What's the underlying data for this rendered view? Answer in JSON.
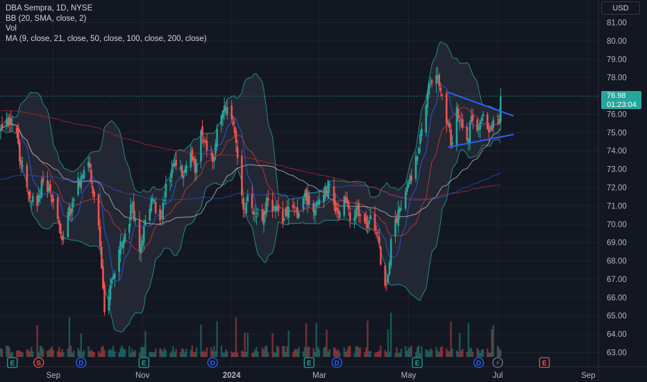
{
  "legend": {
    "line1": "DBA Sempra, 1D, NYSE",
    "line2": "BB (20, SMA, close, 2)",
    "line3": "Vol",
    "line4": "MA (9, close, 21, close, 50, close, 100, close, 200, close)"
  },
  "currency": "USD",
  "last_price": {
    "value": "76.98",
    "countdown": "01:23:04"
  },
  "colors": {
    "background": "#131722",
    "up": "#26a69a",
    "down": "#ef5350",
    "bb_fill": "#2a2e39",
    "ma9": "#2962ff",
    "ma21": "#c33a3a",
    "ma50": "#d1d4dc",
    "ma100": "#2962ff",
    "ma200": "#b22833",
    "trendline": "#2962ff"
  },
  "chart_data": {
    "type": "candlestick",
    "symbol": "DBA Sempra",
    "interval": "1D",
    "exchange": "NYSE",
    "y_ticks": [
      "81.00",
      "80.00",
      "79.00",
      "78.00",
      "77.00",
      "76.00",
      "75.00",
      "74.00",
      "73.00",
      "72.00",
      "71.00",
      "70.00",
      "69.00",
      "68.00",
      "67.00",
      "66.00",
      "65.00",
      "64.00",
      "63.00"
    ],
    "ylim": [
      62.5,
      81.9
    ],
    "x_ticks": [
      {
        "label": "Sep",
        "date": "2023-09-01"
      },
      {
        "label": "Nov",
        "date": "2023-11-01"
      },
      {
        "label": "2024",
        "date": "2024-01-01",
        "bold": true
      },
      {
        "label": "Mar",
        "date": "2024-03-01"
      },
      {
        "label": "May",
        "date": "2024-05-01"
      },
      {
        "label": "Jul",
        "date": "2024-07-01"
      },
      {
        "label": "Sep",
        "date": "2024-09-01"
      }
    ],
    "x_range": [
      "2023-07-27",
      "2024-09-06"
    ],
    "last_close": 76.98,
    "close_anchors": [
      [
        "2023-07-27",
        75.2
      ],
      [
        "2023-08-02",
        75.8
      ],
      [
        "2023-08-07",
        75.0
      ],
      [
        "2023-08-10",
        73.2
      ],
      [
        "2023-08-15",
        71.6
      ],
      [
        "2023-08-21",
        71.0
      ],
      [
        "2023-08-24",
        72.4
      ],
      [
        "2023-08-30",
        71.8
      ],
      [
        "2023-09-05",
        70.0
      ],
      [
        "2023-09-08",
        69.3
      ],
      [
        "2023-09-14",
        71.2
      ],
      [
        "2023-09-20",
        72.6
      ],
      [
        "2023-09-25",
        73.4
      ],
      [
        "2023-09-29",
        71.5
      ],
      [
        "2023-10-03",
        68.8
      ],
      [
        "2023-10-05",
        66.5
      ],
      [
        "2023-10-06",
        65.2
      ],
      [
        "2023-10-11",
        67.0
      ],
      [
        "2023-10-16",
        68.6
      ],
      [
        "2023-10-20",
        69.5
      ],
      [
        "2023-10-25",
        71.0
      ],
      [
        "2023-10-30",
        68.5
      ],
      [
        "2023-11-03",
        70.2
      ],
      [
        "2023-11-08",
        71.4
      ],
      [
        "2023-11-13",
        70.2
      ],
      [
        "2023-11-17",
        72.2
      ],
      [
        "2023-11-22",
        73.3
      ],
      [
        "2023-11-28",
        72.6
      ],
      [
        "2023-12-04",
        73.9
      ],
      [
        "2023-12-07",
        72.8
      ],
      [
        "2023-12-11",
        75.1
      ],
      [
        "2023-12-14",
        74.5
      ],
      [
        "2023-12-19",
        73.4
      ],
      [
        "2023-12-22",
        75.2
      ],
      [
        "2023-12-28",
        76.2
      ],
      [
        "2024-01-03",
        75.0
      ],
      [
        "2024-01-05",
        73.6
      ],
      [
        "2024-01-09",
        70.8
      ],
      [
        "2024-01-12",
        71.6
      ],
      [
        "2024-01-17",
        70.6
      ],
      [
        "2024-01-22",
        70.2
      ],
      [
        "2024-01-26",
        71.3
      ],
      [
        "2024-01-31",
        71.0
      ],
      [
        "2024-02-06",
        70.3
      ],
      [
        "2024-02-12",
        70.9
      ],
      [
        "2024-02-16",
        70.6
      ],
      [
        "2024-02-22",
        71.7
      ],
      [
        "2024-02-27",
        70.8
      ],
      [
        "2024-03-04",
        71.6
      ],
      [
        "2024-03-08",
        72.2
      ],
      [
        "2024-03-13",
        70.8
      ],
      [
        "2024-03-18",
        71.5
      ],
      [
        "2024-03-22",
        70.2
      ],
      [
        "2024-03-27",
        71.0
      ],
      [
        "2024-04-02",
        70.0
      ],
      [
        "2024-04-05",
        70.5
      ],
      [
        "2024-04-10",
        69.5
      ],
      [
        "2024-04-12",
        67.8
      ],
      [
        "2024-04-16",
        66.7
      ],
      [
        "2024-04-19",
        69.2
      ],
      [
        "2024-04-24",
        70.8
      ],
      [
        "2024-04-29",
        71.8
      ],
      [
        "2024-05-02",
        72.6
      ],
      [
        "2024-05-07",
        73.7
      ],
      [
        "2024-05-10",
        75.2
      ],
      [
        "2024-05-14",
        77.1
      ],
      [
        "2024-05-17",
        77.7
      ],
      [
        "2024-05-21",
        78.1
      ],
      [
        "2024-05-24",
        77.0
      ],
      [
        "2024-05-28",
        75.5
      ],
      [
        "2024-05-30",
        74.3
      ],
      [
        "2024-06-03",
        76.4
      ],
      [
        "2024-06-06",
        75.7
      ],
      [
        "2024-06-10",
        74.6
      ],
      [
        "2024-06-13",
        75.9
      ],
      [
        "2024-06-17",
        75.1
      ],
      [
        "2024-06-20",
        75.8
      ],
      [
        "2024-06-25",
        75.0
      ],
      [
        "2024-06-28",
        75.7
      ],
      [
        "2024-07-02",
        75.5
      ],
      [
        "2024-07-03",
        76.98
      ]
    ],
    "trendlines": [
      {
        "from": [
          "2024-05-28",
          77.2
        ],
        "to": [
          "2024-07-12",
          75.9
        ]
      },
      {
        "from": [
          "2024-05-28",
          74.2
        ],
        "to": [
          "2024-07-12",
          74.9
        ]
      }
    ],
    "event_markers": [
      {
        "letter": "E",
        "date": "2023-08-04",
        "color": "#26a69a"
      },
      {
        "letter": "S",
        "date": "2023-08-22",
        "color": "#ef5350"
      },
      {
        "letter": "D",
        "date": "2023-09-20",
        "color": "#2962ff"
      },
      {
        "letter": "E",
        "date": "2023-11-02",
        "color": "#26a69a"
      },
      {
        "letter": "D",
        "date": "2023-12-19",
        "color": "#2962ff"
      },
      {
        "letter": "E",
        "date": "2024-02-23",
        "color": "#26a69a"
      },
      {
        "letter": "D",
        "date": "2024-03-13",
        "color": "#2962ff"
      },
      {
        "letter": "E",
        "date": "2024-05-07",
        "color": "#26a69a"
      },
      {
        "letter": "D",
        "date": "2024-06-18",
        "color": "#2962ff"
      },
      {
        "letter": "⚡",
        "date": "2024-07-01",
        "color": "#787b86"
      },
      {
        "letter": "E",
        "date": "2024-08-02",
        "color": "#ef5350",
        "future": true
      }
    ],
    "indicators": [
      "BB (20, SMA, close, 2)",
      "Vol",
      "MA (9, close, 21, close, 50, close, 100, close, 200, close)"
    ]
  }
}
